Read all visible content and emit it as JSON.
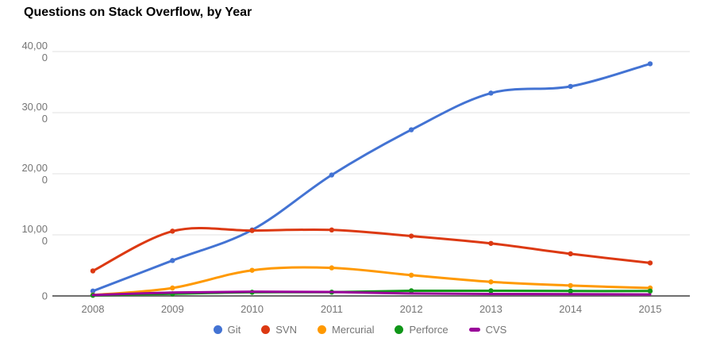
{
  "chart": {
    "title": "Questions on Stack Overflow, by Year"
  },
  "chart_data": {
    "type": "line",
    "title": "Questions on Stack Overflow, by Year",
    "curve": "smooth",
    "grid": true,
    "legend_position": "bottom",
    "xlabel": "",
    "ylabel": "",
    "ylim": [
      0,
      40000
    ],
    "x": [
      2008,
      2009,
      2010,
      2011,
      2012,
      2013,
      2014,
      2015
    ],
    "x_tick_labels": [
      "2008",
      "2009",
      "2010",
      "2011",
      "2012",
      "2013",
      "2014",
      "2015"
    ],
    "y_ticks": [
      {
        "value": 40000,
        "label": "40,000",
        "lines": [
          "40,00",
          "0"
        ]
      },
      {
        "value": 30000,
        "label": "30,000",
        "lines": [
          "30,00",
          "0"
        ]
      },
      {
        "value": 20000,
        "label": "20,000",
        "lines": [
          "20,00",
          "0"
        ]
      },
      {
        "value": 10000,
        "label": "10,000",
        "lines": [
          "10,00",
          "0"
        ]
      },
      {
        "value": 0,
        "label": "0",
        "lines": [
          "0"
        ]
      }
    ],
    "series": [
      {
        "name": "Git",
        "color": "#4373d3",
        "legend_marker": "circle-icon",
        "points_visible": true,
        "values": [
          800,
          5800,
          10800,
          19800,
          27200,
          33200,
          34300,
          38000
        ]
      },
      {
        "name": "SVN",
        "color": "#dc3912",
        "legend_marker": "circle-icon",
        "points_visible": true,
        "values": [
          4100,
          10600,
          10700,
          10800,
          9800,
          8600,
          6900,
          5400
        ]
      },
      {
        "name": "Mercurial",
        "color": "#ff9900",
        "legend_marker": "circle-icon",
        "points_visible": true,
        "values": [
          150,
          1300,
          4200,
          4600,
          3400,
          2300,
          1700,
          1300
        ]
      },
      {
        "name": "Perforce",
        "color": "#109618",
        "legend_marker": "circle-icon",
        "points_visible": true,
        "values": [
          100,
          350,
          600,
          620,
          850,
          850,
          800,
          800
        ]
      },
      {
        "name": "CVS",
        "color": "#990099",
        "legend_marker": "dash-icon",
        "points_visible": false,
        "values": [
          150,
          550,
          700,
          650,
          400,
          320,
          280,
          250
        ]
      }
    ],
    "colors": {
      "gridline": "#e2e2e2",
      "axis_line": "#6e6e6e",
      "axis_text": "#757575",
      "title_text": "#000000",
      "background": "#ffffff"
    }
  }
}
